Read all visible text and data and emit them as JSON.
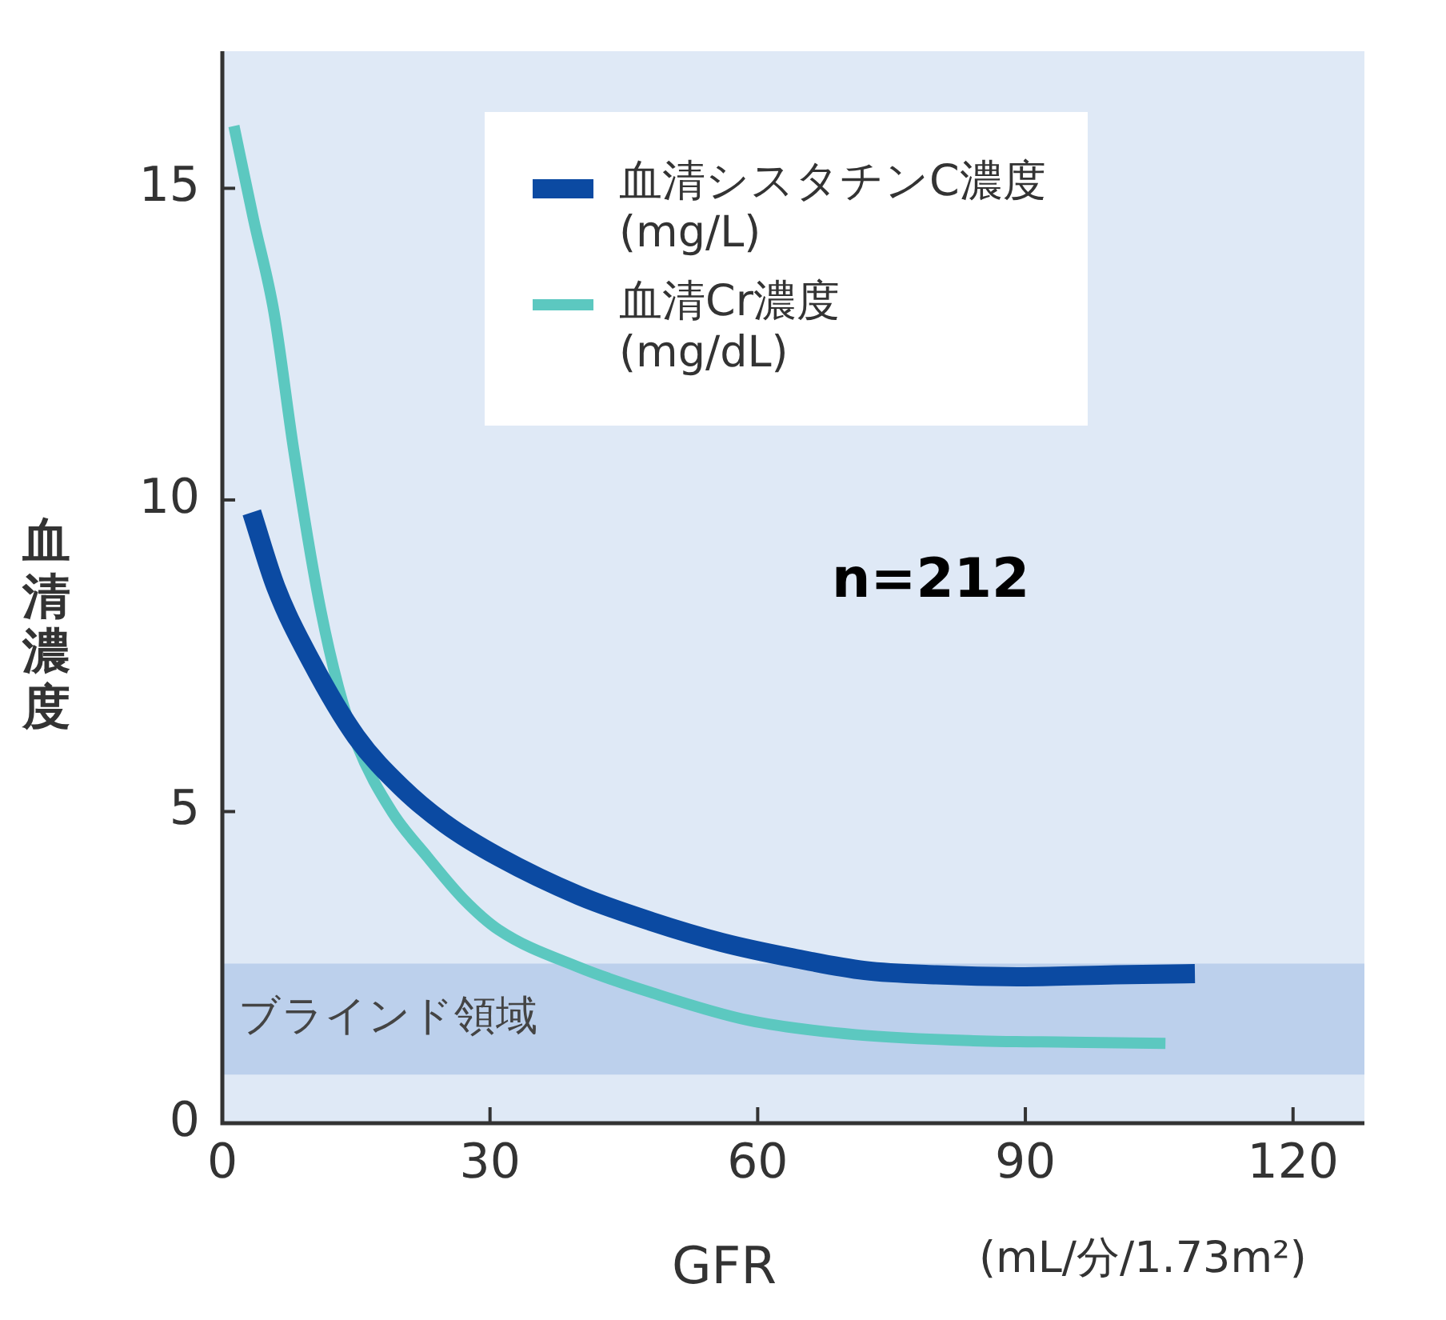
{
  "chart_data": {
    "type": "line",
    "xlabel": "GFR",
    "ylabel": "血清濃度",
    "xlim": [
      0,
      128
    ],
    "xticks": [
      0,
      30,
      60,
      90,
      120
    ],
    "ylim": [
      0,
      17.2
    ],
    "yticks": [
      0,
      5,
      10,
      15
    ],
    "legend": "top right",
    "marker": "none",
    "line_style": "solid",
    "annotations": [
      "n=212",
      "(mL/分/1.73m²)"
    ],
    "bands": [
      {
        "axis": "y",
        "from": 0.78,
        "to": 2.56,
        "label": "ブラインド領域",
        "color": "#bcd0ec"
      }
    ],
    "series": [
      {
        "name": "血清シスタチンC濃度\n(mg/L)",
        "color": "#0b4aa2",
        "x": [
          3.3,
          6,
          10,
          15,
          20,
          25,
          31,
          40,
          48,
          56,
          64,
          72,
          80,
          90,
          100,
          109
        ],
        "values": [
          9.8,
          8.6,
          7.4,
          6.2,
          5.4,
          4.8,
          4.27,
          3.65,
          3.24,
          2.9,
          2.65,
          2.45,
          2.38,
          2.35,
          2.38,
          2.4
        ]
      },
      {
        "name": "血清Cr濃度\n(mg/dL)",
        "color": "#5cc8c0",
        "x": [
          1.3,
          3.5,
          5.8,
          8,
          10.8,
          13,
          15,
          19,
          23,
          27,
          31,
          40,
          48,
          59,
          71,
          85,
          95,
          105.7
        ],
        "values": [
          16.0,
          14.5,
          13.0,
          10.8,
          8.4,
          7.0,
          6.1,
          5.0,
          4.27,
          3.6,
          3.1,
          2.5,
          2.1,
          1.65,
          1.42,
          1.32,
          1.3,
          1.28
        ]
      }
    ]
  }
}
